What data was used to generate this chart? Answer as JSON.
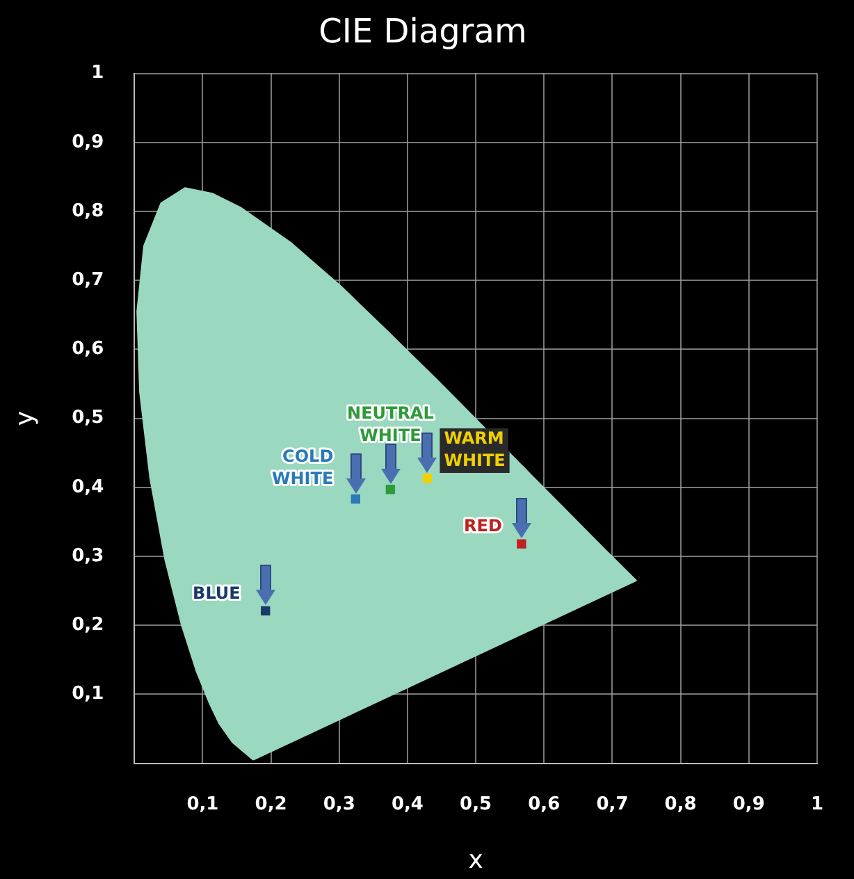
{
  "chart_data": {
    "type": "scatter",
    "title": "CIE Diagram",
    "xlabel": "x",
    "ylabel": "y",
    "xlim": [
      0,
      1
    ],
    "ylim": [
      0,
      1
    ],
    "xticks": [
      {
        "value": 0,
        "label": null
      },
      {
        "value": 0.1,
        "label": "0,1"
      },
      {
        "value": 0.2,
        "label": "0,2"
      },
      {
        "value": 0.3,
        "label": "0,3"
      },
      {
        "value": 0.4,
        "label": "0,4"
      },
      {
        "value": 0.5,
        "label": "0,5"
      },
      {
        "value": 0.6,
        "label": "0,6"
      },
      {
        "value": 0.7,
        "label": "0,7"
      },
      {
        "value": 0.8,
        "label": "0,8"
      },
      {
        "value": 0.9,
        "label": "0,9"
      },
      1
    ],
    "yticks": [
      {
        "value": 0,
        "label": null
      },
      {
        "value": 0.1,
        "label": "0,1"
      },
      {
        "value": 0.2,
        "label": "0,2"
      },
      {
        "value": 0.3,
        "label": "0,3"
      },
      {
        "value": 0.4,
        "label": "0,4"
      },
      {
        "value": 0.5,
        "label": "0,5"
      },
      {
        "value": 0.6,
        "label": "0,6"
      },
      {
        "value": 0.7,
        "label": "0,7"
      },
      {
        "value": 0.8,
        "label": "0,8"
      },
      {
        "value": 0.9,
        "label": "0,9"
      },
      1
    ],
    "grid": true,
    "legend": false,
    "marker": "square",
    "series": [
      {
        "type": "area",
        "marker": "none",
        "color": "#9ad8c0",
        "x": [
          0.1741,
          0.144,
          0.124,
          0.11,
          0.091,
          0.069,
          0.045,
          0.023,
          0.008,
          0.004,
          0.014,
          0.039,
          0.074,
          0.114,
          0.155,
          0.23,
          0.302,
          0.373,
          0.444,
          0.512,
          0.575,
          0.627,
          0.691,
          0.735,
          0.1741
        ],
        "values": [
          0.005,
          0.03,
          0.058,
          0.087,
          0.133,
          0.201,
          0.295,
          0.413,
          0.538,
          0.655,
          0.75,
          0.812,
          0.834,
          0.826,
          0.806,
          0.754,
          0.692,
          0.624,
          0.555,
          0.487,
          0.424,
          0.372,
          0.308,
          0.265,
          0.005
        ]
      },
      {
        "name": "BLUE",
        "color": "#1a3a6a",
        "x": [
          0.192
        ],
        "values": [
          0.221
        ]
      },
      {
        "name": "COLD WHITE",
        "color": "#2a7ab8",
        "x": [
          0.324
        ],
        "values": [
          0.383
        ]
      },
      {
        "name": "NEUTRAL WHITE",
        "color": "#2e9a3a",
        "x": [
          0.375
        ],
        "values": [
          0.397
        ]
      },
      {
        "name": "WARM WHITE",
        "color": "#f0d000",
        "x": [
          0.429
        ],
        "values": [
          0.413
        ]
      },
      {
        "name": "RED",
        "color": "#c02020",
        "x": [
          0.567
        ],
        "values": [
          0.318
        ]
      }
    ]
  }
}
